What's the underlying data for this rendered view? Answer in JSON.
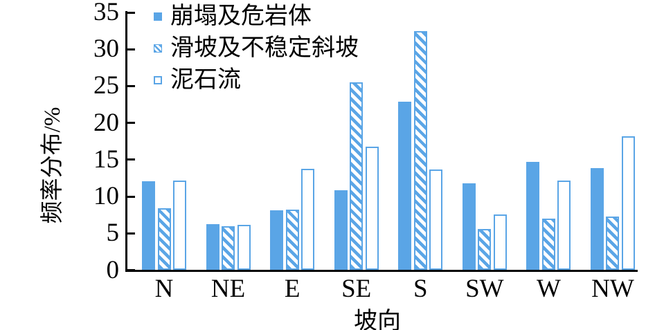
{
  "colors": {
    "bar_blue": "#5AA5E6",
    "axis": "#000000",
    "background": "#FFFFFF"
  },
  "legend": {
    "items": [
      {
        "label": "崩塌及危岩体",
        "marker": "solid-square"
      },
      {
        "label": "滑坡及不稳定斜坡",
        "marker": "hatched-square"
      },
      {
        "label": "泥石流",
        "marker": "open-square"
      }
    ]
  },
  "axes": {
    "y_title": "频率分布/%",
    "x_title": "坡向",
    "y_ticks": [
      0,
      5,
      10,
      15,
      20,
      25,
      30,
      35
    ],
    "x_categories": [
      "N",
      "NE",
      "E",
      "SE",
      "S",
      "SW",
      "W",
      "NW"
    ]
  },
  "chart_data": {
    "type": "bar",
    "title": "",
    "xlabel": "坡向",
    "ylabel": "频率分布/%",
    "ylim": [
      0,
      35
    ],
    "ystep": 5,
    "grid": false,
    "legend_position": "upper-left",
    "categories": [
      "N",
      "NE",
      "E",
      "SE",
      "S",
      "SW",
      "W",
      "NW"
    ],
    "series": [
      {
        "name": "崩塌及危岩体",
        "style": "solid",
        "values": [
          12.0,
          6.2,
          8.1,
          10.8,
          22.8,
          11.7,
          14.7,
          13.8
        ]
      },
      {
        "name": "滑坡及不稳定斜坡",
        "style": "hatched",
        "values": [
          8.4,
          5.9,
          8.2,
          25.5,
          32.4,
          5.5,
          7.0,
          7.2
        ]
      },
      {
        "name": "泥石流",
        "style": "outline",
        "values": [
          12.1,
          6.1,
          13.7,
          16.7,
          13.6,
          7.5,
          12.1,
          18.1
        ]
      }
    ]
  }
}
